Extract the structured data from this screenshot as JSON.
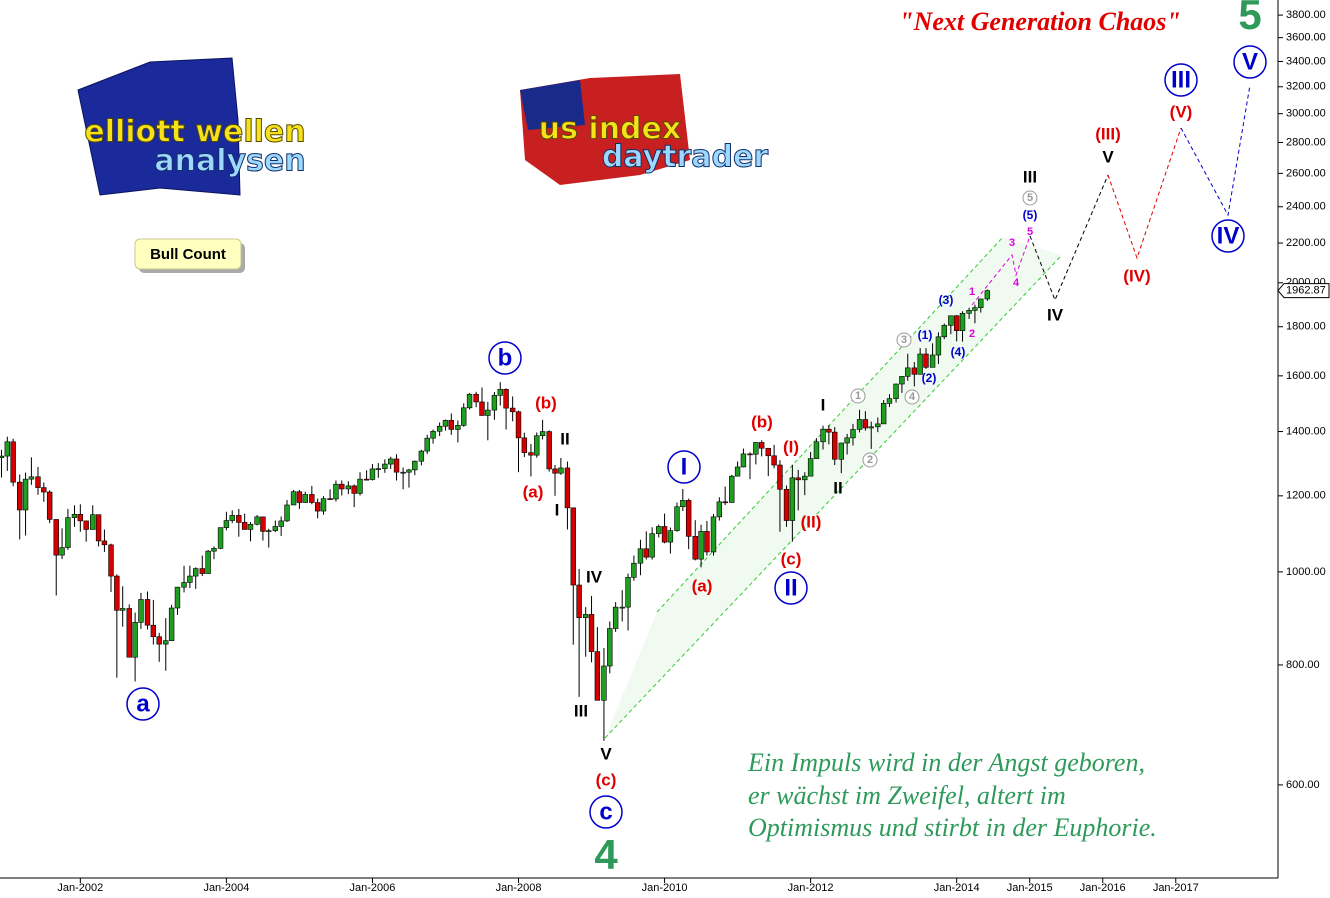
{
  "chart_data": {
    "type": "candlestick",
    "title": "\"Next Generation Chaos\"",
    "log_scale": true,
    "grid": false,
    "up_color": "#1f9f1f",
    "down_color": "#d40000",
    "xlim": [
      2000.9,
      2018.4
    ],
    "xticks": [
      {
        "value": 2002,
        "label": "Jan-2002"
      },
      {
        "value": 2004,
        "label": "Jan-2004"
      },
      {
        "value": 2006,
        "label": "Jan-2006"
      },
      {
        "value": 2008,
        "label": "Jan-2008"
      },
      {
        "value": 2010,
        "label": "Jan-2010"
      },
      {
        "value": 2012,
        "label": "Jan-2012"
      },
      {
        "value": 2014,
        "label": "Jan-2014"
      },
      {
        "value": 2015,
        "label": "Jan-2015"
      },
      {
        "value": 2016,
        "label": "Jan-2016"
      },
      {
        "value": 2017,
        "label": "Jan-2017"
      }
    ],
    "ylim": [
      480,
      3940
    ],
    "yticks": [
      {
        "value": 600,
        "label": "600.00"
      },
      {
        "value": 800,
        "label": "800.00"
      },
      {
        "value": 1000,
        "label": "1000.00"
      },
      {
        "value": 1200,
        "label": "1200.00"
      },
      {
        "value": 1400,
        "label": "1400.00"
      },
      {
        "value": 1600,
        "label": "1600.00"
      },
      {
        "value": 1800,
        "label": "1800.00"
      },
      {
        "value": 2000,
        "label": "2000.00"
      },
      {
        "value": 2200,
        "label": "2200.00"
      },
      {
        "value": 2400,
        "label": "2400.00"
      },
      {
        "value": 2600,
        "label": "2600.00"
      },
      {
        "value": 2800,
        "label": "2800.00"
      },
      {
        "value": 3000,
        "label": "3000.00"
      },
      {
        "value": 3200,
        "label": "3200.00"
      },
      {
        "value": 3400,
        "label": "3400.00"
      },
      {
        "value": 3600,
        "label": "3600.00"
      },
      {
        "value": 3800,
        "label": "3800.00"
      }
    ],
    "candles": [
      [
        2000.83,
        1429,
        1438,
        1294,
        1315
      ],
      [
        2000.92,
        1315,
        1340,
        1254,
        1320
      ],
      [
        2001.0,
        1320,
        1383,
        1274,
        1366
      ],
      [
        2001.08,
        1366,
        1376,
        1228,
        1240
      ],
      [
        2001.17,
        1240,
        1263,
        1081,
        1160
      ],
      [
        2001.25,
        1160,
        1269,
        1091,
        1249
      ],
      [
        2001.33,
        1249,
        1316,
        1232,
        1256
      ],
      [
        2001.42,
        1256,
        1286,
        1203,
        1224
      ],
      [
        2001.5,
        1224,
        1239,
        1183,
        1211
      ],
      [
        2001.58,
        1211,
        1216,
        1124,
        1134
      ],
      [
        2001.67,
        1134,
        1134,
        945,
        1041
      ],
      [
        2001.75,
        1041,
        1110,
        1031,
        1060
      ],
      [
        2001.83,
        1060,
        1163,
        1054,
        1139
      ],
      [
        2001.92,
        1139,
        1173,
        1114,
        1148
      ],
      [
        2002.0,
        1148,
        1176,
        1101,
        1130
      ],
      [
        2002.08,
        1130,
        1130,
        1075,
        1107
      ],
      [
        2002.17,
        1107,
        1173,
        1107,
        1147
      ],
      [
        2002.25,
        1147,
        1147,
        1063,
        1077
      ],
      [
        2002.33,
        1077,
        1107,
        1049,
        1067
      ],
      [
        2002.42,
        1067,
        1070,
        953,
        990
      ],
      [
        2002.5,
        990,
        994,
        776,
        912
      ],
      [
        2002.58,
        912,
        966,
        877,
        916
      ],
      [
        2002.67,
        916,
        925,
        815,
        815
      ],
      [
        2002.75,
        815,
        907,
        769,
        886
      ],
      [
        2002.83,
        886,
        951,
        872,
        936
      ],
      [
        2002.92,
        936,
        954,
        871,
        880
      ],
      [
        2003.0,
        880,
        935,
        840,
        856
      ],
      [
        2003.08,
        856,
        864,
        806,
        841
      ],
      [
        2003.17,
        841,
        895,
        789,
        848
      ],
      [
        2003.25,
        848,
        924,
        847,
        917
      ],
      [
        2003.33,
        917,
        965,
        902,
        964
      ],
      [
        2003.42,
        964,
        1015,
        952,
        975
      ],
      [
        2003.5,
        975,
        1015,
        962,
        990
      ],
      [
        2003.58,
        990,
        1011,
        960,
        1008
      ],
      [
        2003.67,
        1008,
        1040,
        990,
        996
      ],
      [
        2003.75,
        996,
        1054,
        996,
        1051
      ],
      [
        2003.83,
        1051,
        1063,
        1031,
        1058
      ],
      [
        2003.92,
        1058,
        1112,
        1056,
        1112
      ],
      [
        2004.0,
        1112,
        1155,
        1105,
        1131
      ],
      [
        2004.08,
        1131,
        1159,
        1124,
        1145
      ],
      [
        2004.17,
        1145,
        1163,
        1088,
        1126
      ],
      [
        2004.25,
        1126,
        1150,
        1107,
        1107
      ],
      [
        2004.33,
        1107,
        1127,
        1076,
        1121
      ],
      [
        2004.42,
        1121,
        1146,
        1118,
        1141
      ],
      [
        2004.5,
        1141,
        1141,
        1078,
        1102
      ],
      [
        2004.58,
        1102,
        1109,
        1060,
        1104
      ],
      [
        2004.67,
        1104,
        1131,
        1100,
        1115
      ],
      [
        2004.75,
        1115,
        1142,
        1090,
        1130
      ],
      [
        2004.83,
        1130,
        1188,
        1127,
        1174
      ],
      [
        2004.92,
        1174,
        1217,
        1174,
        1212
      ],
      [
        2005.0,
        1212,
        1217,
        1163,
        1181
      ],
      [
        2005.08,
        1181,
        1212,
        1180,
        1204
      ],
      [
        2005.17,
        1204,
        1229,
        1176,
        1181
      ],
      [
        2005.25,
        1181,
        1192,
        1137,
        1157
      ],
      [
        2005.33,
        1157,
        1199,
        1147,
        1192
      ],
      [
        2005.42,
        1192,
        1219,
        1188,
        1191
      ],
      [
        2005.5,
        1191,
        1245,
        1184,
        1234
      ],
      [
        2005.58,
        1234,
        1245,
        1201,
        1220
      ],
      [
        2005.67,
        1220,
        1243,
        1205,
        1229
      ],
      [
        2005.75,
        1229,
        1233,
        1168,
        1207
      ],
      [
        2005.83,
        1207,
        1270,
        1201,
        1249
      ],
      [
        2005.92,
        1249,
        1276,
        1246,
        1248
      ],
      [
        2006.0,
        1248,
        1295,
        1245,
        1280
      ],
      [
        2006.08,
        1280,
        1298,
        1253,
        1281
      ],
      [
        2006.17,
        1281,
        1310,
        1268,
        1295
      ],
      [
        2006.25,
        1295,
        1318,
        1280,
        1311
      ],
      [
        2006.33,
        1311,
        1326,
        1245,
        1270
      ],
      [
        2006.42,
        1270,
        1284,
        1219,
        1270
      ],
      [
        2006.5,
        1270,
        1280,
        1224,
        1277
      ],
      [
        2006.58,
        1277,
        1306,
        1261,
        1304
      ],
      [
        2006.67,
        1304,
        1340,
        1291,
        1336
      ],
      [
        2006.75,
        1336,
        1389,
        1327,
        1378
      ],
      [
        2006.83,
        1378,
        1407,
        1360,
        1401
      ],
      [
        2006.92,
        1401,
        1431,
        1385,
        1418
      ],
      [
        2007.0,
        1418,
        1441,
        1403,
        1438
      ],
      [
        2007.08,
        1438,
        1462,
        1389,
        1407
      ],
      [
        2007.17,
        1407,
        1438,
        1364,
        1421
      ],
      [
        2007.25,
        1421,
        1498,
        1416,
        1482
      ],
      [
        2007.33,
        1482,
        1535,
        1476,
        1531
      ],
      [
        2007.42,
        1531,
        1540,
        1484,
        1503
      ],
      [
        2007.5,
        1503,
        1556,
        1454,
        1455
      ],
      [
        2007.58,
        1455,
        1503,
        1371,
        1474
      ],
      [
        2007.67,
        1474,
        1539,
        1440,
        1527
      ],
      [
        2007.75,
        1527,
        1576,
        1490,
        1549
      ],
      [
        2007.83,
        1549,
        1553,
        1407,
        1481
      ],
      [
        2007.92,
        1481,
        1523,
        1435,
        1468
      ],
      [
        2008.0,
        1468,
        1472,
        1270,
        1379
      ],
      [
        2008.08,
        1379,
        1396,
        1317,
        1331
      ],
      [
        2008.17,
        1331,
        1359,
        1257,
        1323
      ],
      [
        2008.25,
        1323,
        1397,
        1315,
        1386
      ],
      [
        2008.33,
        1386,
        1440,
        1374,
        1400
      ],
      [
        2008.42,
        1400,
        1404,
        1272,
        1280
      ],
      [
        2008.5,
        1280,
        1292,
        1200,
        1267
      ],
      [
        2008.58,
        1267,
        1314,
        1262,
        1283
      ],
      [
        2008.67,
        1283,
        1303,
        1107,
        1166
      ],
      [
        2008.75,
        1166,
        1167,
        840,
        969
      ],
      [
        2008.83,
        969,
        1007,
        741,
        896
      ],
      [
        2008.92,
        896,
        919,
        816,
        903
      ],
      [
        2009.0,
        903,
        944,
        805,
        826
      ],
      [
        2009.08,
        826,
        876,
        735,
        735
      ],
      [
        2009.17,
        735,
        833,
        667,
        798
      ],
      [
        2009.25,
        798,
        888,
        784,
        873
      ],
      [
        2009.33,
        873,
        930,
        866,
        919
      ],
      [
        2009.42,
        919,
        957,
        888,
        919
      ],
      [
        2009.5,
        919,
        996,
        869,
        987
      ],
      [
        2009.58,
        987,
        1040,
        979,
        1021
      ],
      [
        2009.67,
        1021,
        1080,
        992,
        1057
      ],
      [
        2009.75,
        1057,
        1102,
        1030,
        1036
      ],
      [
        2009.83,
        1036,
        1113,
        1030,
        1096
      ],
      [
        2009.92,
        1096,
        1120,
        1086,
        1115
      ],
      [
        2010.0,
        1115,
        1150,
        1071,
        1074
      ],
      [
        2010.08,
        1074,
        1112,
        1045,
        1104
      ],
      [
        2010.17,
        1104,
        1181,
        1101,
        1169
      ],
      [
        2010.25,
        1169,
        1220,
        1157,
        1187
      ],
      [
        2010.33,
        1187,
        1192,
        1056,
        1089
      ],
      [
        2010.42,
        1089,
        1132,
        1028,
        1031
      ],
      [
        2010.5,
        1031,
        1120,
        1011,
        1102
      ],
      [
        2010.58,
        1102,
        1130,
        1040,
        1049
      ],
      [
        2010.67,
        1049,
        1149,
        1040,
        1141
      ],
      [
        2010.75,
        1141,
        1196,
        1131,
        1183
      ],
      [
        2010.83,
        1183,
        1227,
        1174,
        1181
      ],
      [
        2010.92,
        1181,
        1262,
        1181,
        1258
      ],
      [
        2011.0,
        1258,
        1303,
        1257,
        1286
      ],
      [
        2011.08,
        1286,
        1344,
        1285,
        1327
      ],
      [
        2011.17,
        1327,
        1332,
        1249,
        1326
      ],
      [
        2011.25,
        1326,
        1364,
        1294,
        1364
      ],
      [
        2011.33,
        1364,
        1371,
        1319,
        1345
      ],
      [
        2011.42,
        1345,
        1346,
        1258,
        1321
      ],
      [
        2011.5,
        1321,
        1356,
        1282,
        1292
      ],
      [
        2011.58,
        1292,
        1307,
        1101,
        1219
      ],
      [
        2011.67,
        1219,
        1230,
        1114,
        1131
      ],
      [
        2011.75,
        1131,
        1293,
        1075,
        1253
      ],
      [
        2011.83,
        1253,
        1277,
        1159,
        1247
      ],
      [
        2011.92,
        1247,
        1270,
        1202,
        1258
      ],
      [
        2012.0,
        1258,
        1333,
        1258,
        1312
      ],
      [
        2012.08,
        1312,
        1378,
        1312,
        1366
      ],
      [
        2012.17,
        1366,
        1420,
        1341,
        1408
      ],
      [
        2012.25,
        1408,
        1422,
        1358,
        1398
      ],
      [
        2012.33,
        1398,
        1415,
        1292,
        1310
      ],
      [
        2012.42,
        1310,
        1363,
        1267,
        1362
      ],
      [
        2012.5,
        1362,
        1392,
        1325,
        1379
      ],
      [
        2012.58,
        1379,
        1426,
        1354,
        1407
      ],
      [
        2012.67,
        1407,
        1475,
        1397,
        1441
      ],
      [
        2012.75,
        1441,
        1470,
        1403,
        1412
      ],
      [
        2012.83,
        1412,
        1434,
        1343,
        1416
      ],
      [
        2012.92,
        1416,
        1448,
        1398,
        1426
      ],
      [
        2013.0,
        1426,
        1510,
        1426,
        1498
      ],
      [
        2013.08,
        1498,
        1531,
        1485,
        1515
      ],
      [
        2013.17,
        1515,
        1570,
        1501,
        1569
      ],
      [
        2013.25,
        1569,
        1598,
        1536,
        1598
      ],
      [
        2013.33,
        1598,
        1687,
        1581,
        1631
      ],
      [
        2013.42,
        1631,
        1654,
        1560,
        1606
      ],
      [
        2013.5,
        1606,
        1710,
        1605,
        1686
      ],
      [
        2013.58,
        1686,
        1710,
        1627,
        1633
      ],
      [
        2013.67,
        1633,
        1730,
        1633,
        1682
      ],
      [
        2013.75,
        1682,
        1776,
        1646,
        1757
      ],
      [
        2013.83,
        1757,
        1814,
        1747,
        1806
      ],
      [
        2013.92,
        1806,
        1849,
        1768,
        1848
      ],
      [
        2014.0,
        1848,
        1851,
        1738,
        1783
      ],
      [
        2014.08,
        1783,
        1868,
        1737,
        1859
      ],
      [
        2014.17,
        1859,
        1884,
        1834,
        1872
      ],
      [
        2014.25,
        1872,
        1898,
        1815,
        1884
      ],
      [
        2014.33,
        1884,
        1925,
        1862,
        1924
      ],
      [
        2014.42,
        1924,
        1968,
        1915,
        1962.87
      ]
    ],
    "last_price": 1962.87,
    "wave_labels": [
      "5",
      "V",
      "III",
      "(V)",
      "(III)",
      "V",
      "III",
      "5",
      "(5)",
      "5",
      "3",
      "4",
      "1",
      "2",
      "IV",
      "(IV)",
      "IV",
      "(3)",
      "(1)",
      "(4)",
      "(2)",
      "3",
      "4",
      "1",
      "2",
      "I",
      "II",
      "(b)",
      "(I)",
      "(II)",
      "(c)",
      "II",
      "I",
      "(a)",
      "b",
      "(b)",
      "II",
      "(a)",
      "I",
      "IV",
      "III",
      "V",
      "(c)",
      "c",
      "4",
      "a"
    ],
    "count_label": "Bull Count",
    "quote": [
      "Ein Impuls wird in der Angst geboren,",
      "er wächst im Zweifel, altert im",
      "Optimismus und stirbt in der Euphorie."
    ],
    "logos": [
      [
        "elliott wellen",
        "analysen"
      ],
      [
        "us index",
        "daytrader"
      ]
    ]
  }
}
